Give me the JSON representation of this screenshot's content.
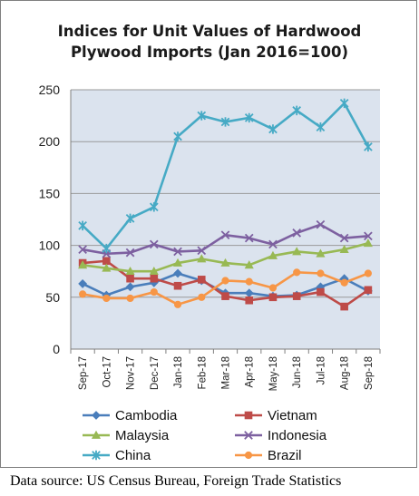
{
  "chart_data": {
    "type": "line",
    "title": "Indices for Unit Values of Hardwood Plywood Imports (Jan 2016=100)",
    "title_lines": [
      "Indices for Unit Values of Hardwood",
      "Plywood Imports (Jan 2016=100)"
    ],
    "xlabel": "",
    "ylabel": "",
    "categories": [
      "Sep-17",
      "Oct-17",
      "Nov-17",
      "Dec-17",
      "Jan-18",
      "Feb-18",
      "Mar-18",
      "Apr-18",
      "May-18",
      "Jun-18",
      "Jul-18",
      "Aug-18",
      "Sep-18"
    ],
    "ylim": [
      0,
      250
    ],
    "yticks": [
      0,
      50,
      100,
      150,
      200,
      250
    ],
    "grid": true,
    "legend_position": "bottom",
    "series": [
      {
        "name": "Cambodia",
        "color": "#4a7ebb",
        "marker": "diamond",
        "values": [
          63,
          52,
          60,
          64,
          73,
          66,
          54,
          54,
          51,
          52,
          60,
          68,
          56
        ]
      },
      {
        "name": "Vietnam",
        "color": "#be4b48",
        "marker": "square",
        "values": [
          83,
          85,
          68,
          68,
          61,
          67,
          51,
          47,
          50,
          51,
          55,
          41,
          57
        ]
      },
      {
        "name": "Malaysia",
        "color": "#98b954",
        "marker": "triangle",
        "values": [
          81,
          78,
          75,
          75,
          83,
          87,
          83,
          81,
          90,
          94,
          92,
          96,
          102
        ]
      },
      {
        "name": "Indonesia",
        "color": "#7d60a0",
        "marker": "x",
        "values": [
          96,
          92,
          93,
          101,
          94,
          95,
          110,
          107,
          101,
          112,
          120,
          107,
          109
        ]
      },
      {
        "name": "China",
        "color": "#46aac5",
        "marker": "star",
        "values": [
          119,
          97,
          126,
          137,
          205,
          225,
          219,
          223,
          212,
          230,
          214,
          237,
          195
        ]
      },
      {
        "name": "Brazil",
        "color": "#f79646",
        "marker": "circle",
        "values": [
          53,
          49,
          49,
          55,
          43,
          50,
          66,
          65,
          59,
          74,
          73,
          64,
          73
        ]
      }
    ]
  },
  "source_note": "Data source: US Census Bureau, Foreign Trade Statistics"
}
